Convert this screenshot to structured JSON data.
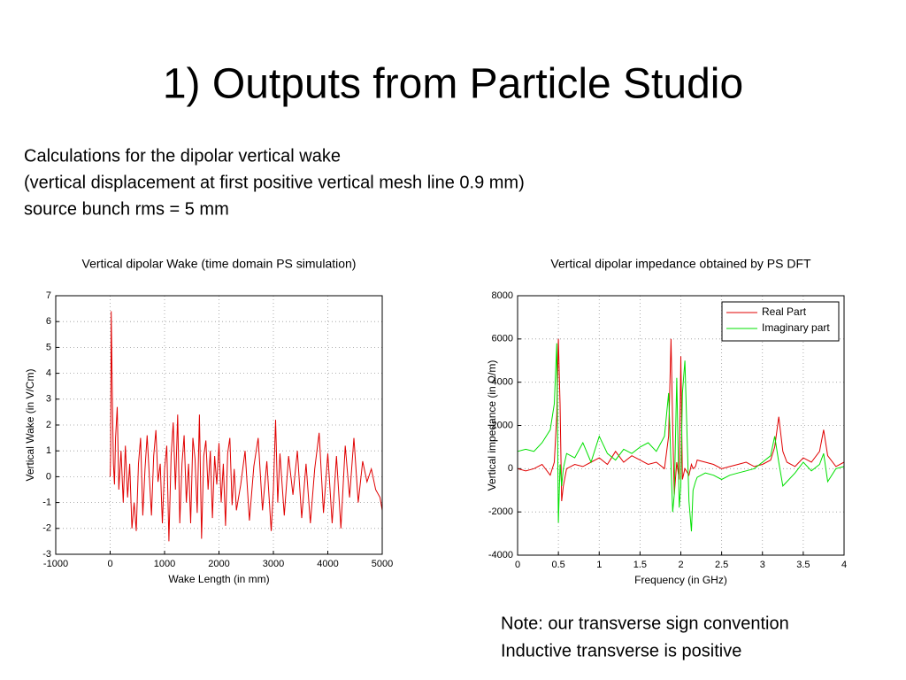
{
  "title": "1) Outputs from Particle Studio",
  "description": [
    "Calculations for the dipolar vertical wake",
    "(vertical displacement at first positive vertical mesh line 0.9 mm)",
    "source bunch rms = 5 mm"
  ],
  "note": [
    "Note: our transverse sign convention",
    "Inductive transverse is positive"
  ],
  "chart_data": [
    {
      "type": "line",
      "title": "Vertical dipolar Wake (time domain PS simulation)",
      "x_label": "Wake Length (in mm)",
      "y_label": "Vertical Wake (in  V/Cm)",
      "xlim": [
        -1000,
        5000
      ],
      "xticks": [
        -1000,
        0,
        1000,
        2000,
        3000,
        4000,
        5000
      ],
      "ylim": [
        -3,
        7
      ],
      "yticks": [
        -3,
        -2,
        -1,
        0,
        1,
        2,
        3,
        4,
        5,
        6,
        7
      ],
      "grid": true,
      "color": "#e00000",
      "x": [
        0,
        10,
        20,
        40,
        60,
        80,
        100,
        130,
        160,
        200,
        240,
        280,
        320,
        360,
        400,
        440,
        480,
        520,
        560,
        600,
        640,
        680,
        720,
        760,
        800,
        840,
        880,
        920,
        960,
        1000,
        1040,
        1080,
        1120,
        1160,
        1200,
        1240,
        1280,
        1320,
        1360,
        1400,
        1440,
        1480,
        1520,
        1560,
        1600,
        1640,
        1680,
        1720,
        1760,
        1800,
        1840,
        1880,
        1920,
        1960,
        2000,
        2040,
        2080,
        2120,
        2160,
        2200,
        2240,
        2280,
        2320,
        2400,
        2480,
        2560,
        2640,
        2720,
        2800,
        2880,
        2960,
        3000,
        3040,
        3080,
        3120,
        3200,
        3280,
        3360,
        3440,
        3520,
        3600,
        3680,
        3760,
        3840,
        3920,
        4000,
        4080,
        4160,
        4240,
        4320,
        4400,
        4480,
        4560,
        4640,
        4720,
        4800,
        4880,
        4960,
        5000
      ],
      "values": [
        0,
        1,
        6.4,
        3,
        0.5,
        -0.3,
        1.5,
        2.7,
        -0.5,
        1,
        -1,
        1.2,
        -0.8,
        0.5,
        -2,
        -1,
        -2.1,
        0.5,
        1.5,
        -1.5,
        0.3,
        1.6,
        0,
        -1.5,
        0.8,
        1.8,
        -0.2,
        0.5,
        -1.8,
        0.3,
        1.2,
        -2.5,
        0.8,
        2.1,
        -0.5,
        2.4,
        -1.8,
        0.5,
        1.6,
        -1,
        0.5,
        -1.8,
        1.5,
        0.7,
        -1.4,
        2.4,
        -2.4,
        0.8,
        1.4,
        -0.5,
        1.0,
        -1.6,
        0.8,
        -0.3,
        1.3,
        -1.0,
        0.5,
        -1.9,
        0.9,
        1.5,
        -1.1,
        0.3,
        -1.3,
        -0.3,
        1.0,
        -1.7,
        0.4,
        1.5,
        -1.3,
        0.6,
        -2.1,
        -0.5,
        2.2,
        -1.0,
        0.9,
        -1.5,
        0.8,
        -0.7,
        1.0,
        -1.6,
        0.5,
        -1.8,
        0.3,
        1.7,
        -1.4,
        0.9,
        -1.8,
        0.8,
        -2.0,
        1.2,
        -0.8,
        1.5,
        -1.0,
        0.6,
        -0.2,
        0.3,
        -0.5,
        -0.8,
        -1.3
      ]
    },
    {
      "type": "line",
      "title": "Vertical dipolar impedance obtained by PS DFT",
      "x_label": "Frequency (in GHz)",
      "y_label": "Vertical impedance (in  Ω/m)",
      "xlim": [
        0,
        4
      ],
      "xticks": [
        0,
        0.5,
        1,
        1.5,
        2,
        2.5,
        3,
        3.5,
        4
      ],
      "ylim": [
        -4000,
        8000
      ],
      "yticks": [
        -4000,
        -2000,
        0,
        2000,
        4000,
        6000,
        8000
      ],
      "grid": true,
      "legend": "upper right",
      "x": [
        0,
        0.1,
        0.2,
        0.3,
        0.4,
        0.45,
        0.48,
        0.5,
        0.52,
        0.54,
        0.56,
        0.6,
        0.7,
        0.8,
        0.9,
        1.0,
        1.1,
        1.2,
        1.3,
        1.4,
        1.5,
        1.6,
        1.7,
        1.8,
        1.85,
        1.88,
        1.9,
        1.92,
        1.95,
        1.98,
        2.0,
        2.02,
        2.05,
        2.1,
        2.13,
        2.15,
        2.18,
        2.2,
        2.3,
        2.4,
        2.5,
        2.6,
        2.7,
        2.8,
        2.9,
        3.0,
        3.1,
        3.15,
        3.2,
        3.25,
        3.3,
        3.4,
        3.5,
        3.6,
        3.7,
        3.75,
        3.8,
        3.9,
        4.0
      ],
      "series": [
        {
          "name": "Real Part",
          "color": "#e00000",
          "values": [
            0,
            -100,
            0,
            200,
            -300,
            300,
            2500,
            6000,
            3000,
            -1500,
            -800,
            0,
            200,
            100,
            300,
            500,
            200,
            800,
            300,
            600,
            400,
            200,
            300,
            0,
            1500,
            6000,
            2000,
            -1200,
            300,
            -500,
            5200,
            -500,
            0,
            -300,
            200,
            0,
            100,
            400,
            300,
            200,
            0,
            100,
            200,
            300,
            100,
            200,
            400,
            1000,
            2400,
            800,
            300,
            100,
            500,
            300,
            800,
            1800,
            600,
            100,
            300
          ]
        },
        {
          "name": "Imaginary part",
          "color": "#00e000",
          "values": [
            800,
            900,
            800,
            1200,
            1800,
            3000,
            5800,
            -2500,
            200,
            -800,
            0,
            700,
            500,
            1200,
            300,
            1500,
            700,
            400,
            900,
            700,
            1000,
            1200,
            800,
            1500,
            3500,
            200,
            -2000,
            -1200,
            4200,
            -1800,
            -800,
            3500,
            5000,
            -1500,
            -2900,
            -1000,
            -600,
            -400,
            -200,
            -300,
            -500,
            -300,
            -200,
            -100,
            0,
            300,
            600,
            1500,
            300,
            -800,
            -600,
            -200,
            300,
            -100,
            200,
            700,
            -600,
            0,
            100
          ]
        }
      ]
    }
  ]
}
